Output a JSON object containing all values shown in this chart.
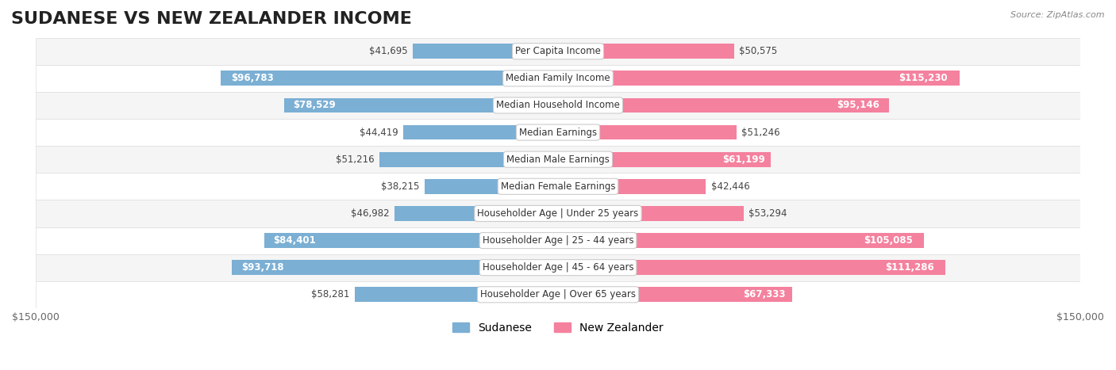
{
  "title": "SUDANESE VS NEW ZEALANDER INCOME",
  "source": "Source: ZipAtlas.com",
  "categories": [
    "Per Capita Income",
    "Median Family Income",
    "Median Household Income",
    "Median Earnings",
    "Median Male Earnings",
    "Median Female Earnings",
    "Householder Age | Under 25 years",
    "Householder Age | 25 - 44 years",
    "Householder Age | 45 - 64 years",
    "Householder Age | Over 65 years"
  ],
  "sudanese_values": [
    41695,
    96783,
    78529,
    44419,
    51216,
    38215,
    46982,
    84401,
    93718,
    58281
  ],
  "nz_values": [
    50575,
    115230,
    95146,
    51246,
    61199,
    42446,
    53294,
    105085,
    111286,
    67333
  ],
  "sudanese_labels": [
    "$41,695",
    "$96,783",
    "$78,529",
    "$44,419",
    "$51,216",
    "$38,215",
    "$46,982",
    "$84,401",
    "$93,718",
    "$58,281"
  ],
  "nz_labels": [
    "$50,575",
    "$115,230",
    "$95,146",
    "$51,246",
    "$61,199",
    "$42,446",
    "$53,294",
    "$105,085",
    "$111,286",
    "$67,333"
  ],
  "max_value": 150000,
  "sudanese_color": "#7bafd4",
  "nz_color": "#f4819e",
  "sudanese_color_dark": "#5a9bc4",
  "nz_color_dark": "#e85c85",
  "row_bg_light": "#f5f5f5",
  "row_bg_white": "#ffffff",
  "bar_height": 0.55,
  "label_box_color": "#ffffff",
  "label_box_edge": "#cccccc",
  "title_fontsize": 16,
  "label_fontsize": 8.5,
  "cat_fontsize": 8.5,
  "legend_fontsize": 10,
  "axis_label_fontsize": 9,
  "sudanese_text_threshold": 60000,
  "nz_text_threshold": 60000,
  "figure_bg": "#ffffff"
}
